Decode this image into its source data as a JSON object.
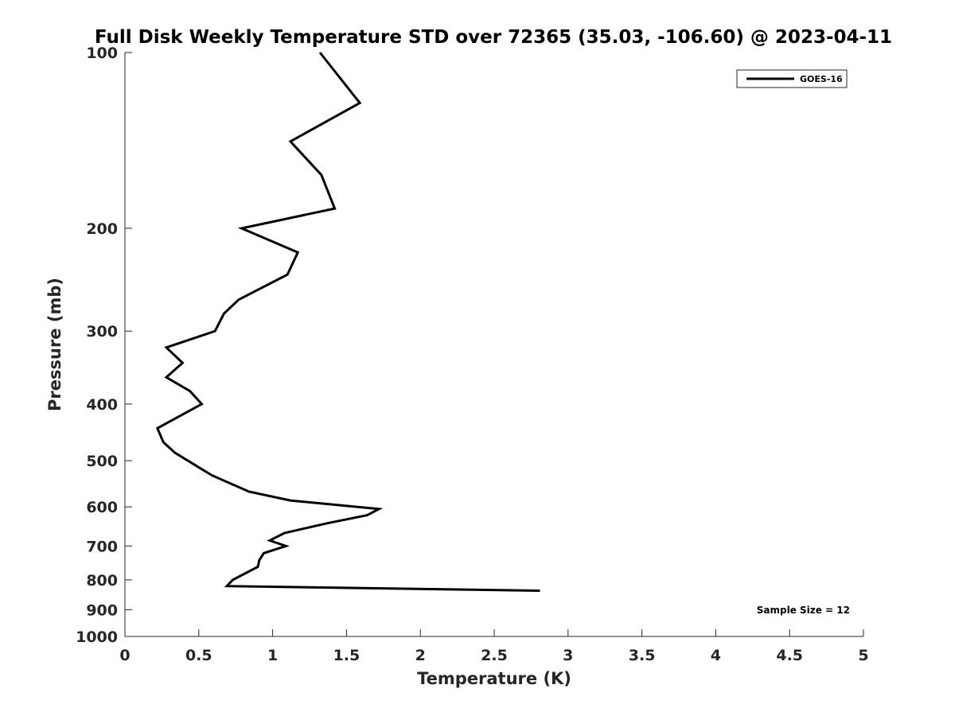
{
  "chart_data": {
    "type": "line",
    "title": "Full Disk Weekly Temperature STD over 72365 (35.03, -106.60) @ 2023-04-11",
    "xlabel": "Temperature (K)",
    "ylabel": "Pressure (mb)",
    "xlim": [
      0,
      5
    ],
    "ylim": [
      100,
      1000
    ],
    "yscale": "log",
    "yreversed": true,
    "grid": false,
    "legend_position": "top-right",
    "xticks": [
      0,
      0.5,
      1,
      1.5,
      2,
      2.5,
      3,
      3.5,
      4,
      4.5,
      5
    ],
    "xtick_labels": [
      "0",
      "0.5",
      "1",
      "1.5",
      "2",
      "2.5",
      "3",
      "3.5",
      "4",
      "4.5",
      "5"
    ],
    "yticks": [
      100,
      200,
      300,
      400,
      500,
      600,
      700,
      800,
      900,
      1000
    ],
    "ytick_labels": [
      "100",
      "200",
      "300",
      "400",
      "500",
      "600",
      "700",
      "800",
      "900",
      "1000"
    ],
    "annotation": "Sample Size = 12",
    "series": [
      {
        "name": "GOES-16",
        "color": "#000000",
        "points": [
          {
            "x": 1.32,
            "p": 100
          },
          {
            "x": 1.59,
            "p": 122
          },
          {
            "x": 1.12,
            "p": 142
          },
          {
            "x": 1.33,
            "p": 162
          },
          {
            "x": 1.42,
            "p": 185
          },
          {
            "x": 0.79,
            "p": 200
          },
          {
            "x": 1.17,
            "p": 220
          },
          {
            "x": 1.1,
            "p": 240
          },
          {
            "x": 0.77,
            "p": 265
          },
          {
            "x": 0.67,
            "p": 280
          },
          {
            "x": 0.61,
            "p": 300
          },
          {
            "x": 0.28,
            "p": 320
          },
          {
            "x": 0.39,
            "p": 340
          },
          {
            "x": 0.28,
            "p": 360
          },
          {
            "x": 0.44,
            "p": 380
          },
          {
            "x": 0.52,
            "p": 400
          },
          {
            "x": 0.22,
            "p": 440
          },
          {
            "x": 0.26,
            "p": 465
          },
          {
            "x": 0.34,
            "p": 485
          },
          {
            "x": 0.59,
            "p": 530
          },
          {
            "x": 0.84,
            "p": 565
          },
          {
            "x": 1.12,
            "p": 585
          },
          {
            "x": 1.72,
            "p": 605
          },
          {
            "x": 1.64,
            "p": 620
          },
          {
            "x": 1.37,
            "p": 640
          },
          {
            "x": 1.08,
            "p": 665
          },
          {
            "x": 0.98,
            "p": 685
          },
          {
            "x": 1.09,
            "p": 700
          },
          {
            "x": 0.94,
            "p": 720
          },
          {
            "x": 0.91,
            "p": 740
          },
          {
            "x": 0.9,
            "p": 760
          },
          {
            "x": 0.73,
            "p": 800
          },
          {
            "x": 0.69,
            "p": 820
          },
          {
            "x": 2.81,
            "p": 835
          }
        ]
      }
    ]
  }
}
